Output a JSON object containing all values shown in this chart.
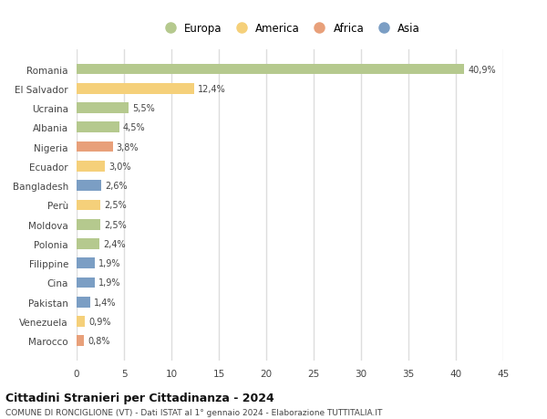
{
  "countries": [
    "Romania",
    "El Salvador",
    "Ucraina",
    "Albania",
    "Nigeria",
    "Ecuador",
    "Bangladesh",
    "Perù",
    "Moldova",
    "Polonia",
    "Filippine",
    "Cina",
    "Pakistan",
    "Venezuela",
    "Marocco"
  ],
  "values": [
    40.9,
    12.4,
    5.5,
    4.5,
    3.8,
    3.0,
    2.6,
    2.5,
    2.5,
    2.4,
    1.9,
    1.9,
    1.4,
    0.9,
    0.8
  ],
  "labels": [
    "40,9%",
    "12,4%",
    "5,5%",
    "4,5%",
    "3,8%",
    "3,0%",
    "2,6%",
    "2,5%",
    "2,5%",
    "2,4%",
    "1,9%",
    "1,9%",
    "1,4%",
    "0,9%",
    "0,8%"
  ],
  "continents": [
    "Europa",
    "America",
    "Europa",
    "Europa",
    "Africa",
    "America",
    "Asia",
    "America",
    "Europa",
    "Europa",
    "Asia",
    "Asia",
    "Asia",
    "America",
    "Africa"
  ],
  "continent_colors": {
    "Europa": "#b5c98e",
    "America": "#f5d07a",
    "Africa": "#e8a07a",
    "Asia": "#7b9ec4"
  },
  "legend_order": [
    "Europa",
    "America",
    "Africa",
    "Asia"
  ],
  "xlim": [
    0,
    45
  ],
  "xticks": [
    0,
    5,
    10,
    15,
    20,
    25,
    30,
    35,
    40,
    45
  ],
  "title": "Cittadini Stranieri per Cittadinanza - 2024",
  "subtitle": "COMUNE DI RONCIGLIONE (VT) - Dati ISTAT al 1° gennaio 2024 - Elaborazione TUTTITALIA.IT",
  "background_color": "#ffffff",
  "grid_color": "#dddddd",
  "bar_height": 0.55
}
